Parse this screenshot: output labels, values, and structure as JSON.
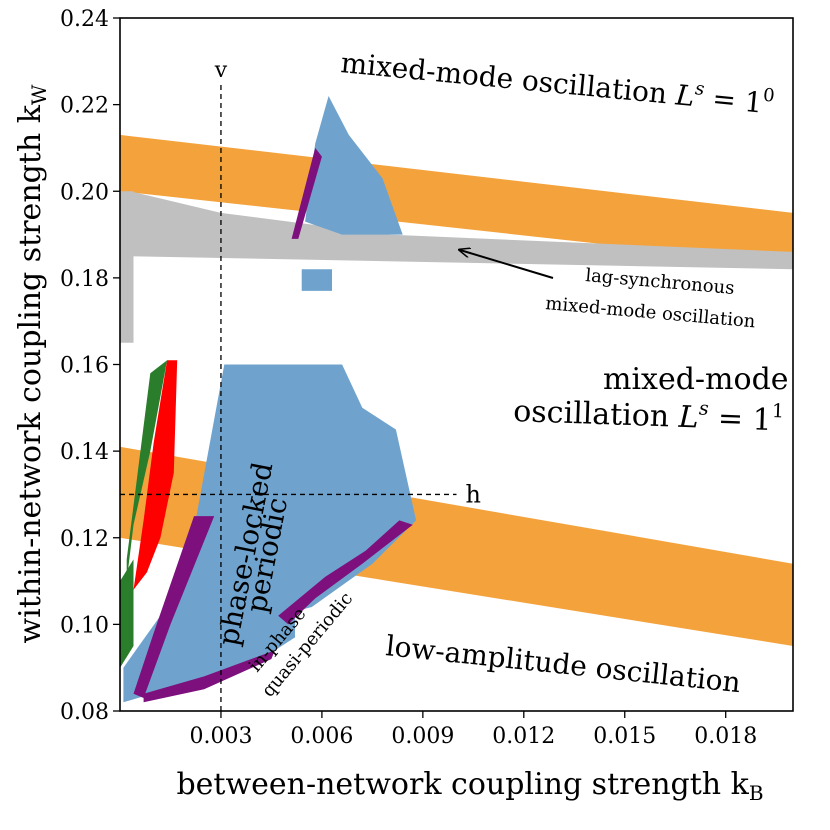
{
  "chart_data": {
    "type": "heatmap",
    "title": "",
    "xlabel": "between-network coupling strength k",
    "xlabel_sub": "B",
    "ylabel": "within-network coupling strength k",
    "ylabel_sub": "W",
    "xlim": [
      0.0,
      0.02
    ],
    "ylim": [
      0.08,
      0.24
    ],
    "xticks": [
      0.003,
      0.006,
      0.009,
      0.012,
      0.015,
      0.018
    ],
    "xtick_labels": [
      "0.003",
      "0.006",
      "0.009",
      "0.012",
      "0.015",
      "0.018"
    ],
    "yticks": [
      0.08,
      0.1,
      0.12,
      0.14,
      0.16,
      0.18,
      0.2,
      0.22,
      0.24
    ],
    "ytick_labels": [
      "0.08",
      "0.10",
      "0.12",
      "0.14",
      "0.16",
      "0.18",
      "0.20",
      "0.22",
      "0.24"
    ],
    "grid": false,
    "colors": {
      "orange": "#f4a23c",
      "blue": "#6fa3cd",
      "gray": "#c0c0c0",
      "red": "#ff0000",
      "green": "#2a7d2a",
      "purple": "#7d107d"
    },
    "regions": [
      {
        "color": "orange",
        "points": [
          [
            0.0,
            0.213
          ],
          [
            0.02,
            0.195
          ],
          [
            0.02,
            0.183
          ],
          [
            0.0,
            0.2
          ]
        ]
      },
      {
        "color": "orange",
        "points": [
          [
            0.0,
            0.141
          ],
          [
            0.02,
            0.114
          ],
          [
            0.02,
            0.095
          ],
          [
            0.0,
            0.12
          ]
        ]
      },
      {
        "color": "gray",
        "points": [
          [
            0.0003,
            0.2
          ],
          [
            0.003,
            0.195
          ],
          [
            0.008,
            0.19
          ],
          [
            0.02,
            0.186
          ],
          [
            0.02,
            0.182
          ],
          [
            0.0003,
            0.185
          ]
        ]
      },
      {
        "color": "gray",
        "points": [
          [
            0.0,
            0.2
          ],
          [
            0.0004,
            0.2
          ],
          [
            0.0004,
            0.165
          ],
          [
            0.0,
            0.165
          ]
        ]
      },
      {
        "color": "blue",
        "points": [
          [
            0.0031,
            0.16
          ],
          [
            0.0066,
            0.16
          ],
          [
            0.0072,
            0.15
          ],
          [
            0.0082,
            0.145
          ],
          [
            0.0088,
            0.124
          ],
          [
            0.0075,
            0.114
          ],
          [
            0.0057,
            0.104
          ],
          [
            0.0052,
            0.103
          ],
          [
            0.0052,
            0.097
          ],
          [
            0.0046,
            0.094
          ],
          [
            0.0034,
            0.09
          ],
          [
            0.0014,
            0.085
          ],
          [
            0.0001,
            0.082
          ],
          [
            0.0001,
            0.09
          ],
          [
            0.0012,
            0.102
          ],
          [
            0.0022,
            0.122
          ]
        ]
      },
      {
        "color": "blue",
        "points": [
          [
            0.0058,
            0.211
          ],
          [
            0.0062,
            0.222
          ],
          [
            0.0068,
            0.213
          ],
          [
            0.0078,
            0.203
          ],
          [
            0.0084,
            0.19
          ],
          [
            0.0066,
            0.19
          ],
          [
            0.0055,
            0.193
          ]
        ]
      },
      {
        "color": "blue",
        "points": [
          [
            0.0054,
            0.182
          ],
          [
            0.0063,
            0.182
          ],
          [
            0.0063,
            0.177
          ],
          [
            0.0054,
            0.177
          ]
        ]
      },
      {
        "color": "red",
        "points": [
          [
            0.0014,
            0.161
          ],
          [
            0.0017,
            0.161
          ],
          [
            0.0016,
            0.135
          ],
          [
            0.0012,
            0.12
          ],
          [
            0.0008,
            0.112
          ],
          [
            0.0004,
            0.108
          ],
          [
            0.0007,
            0.124
          ],
          [
            0.001,
            0.142
          ]
        ]
      },
      {
        "color": "green",
        "points": [
          [
            0.0009,
            0.158
          ],
          [
            0.0014,
            0.161
          ],
          [
            0.0009,
            0.14
          ],
          [
            0.0004,
            0.123
          ],
          [
            0.0002,
            0.11
          ],
          [
            0.0002,
            0.115
          ]
        ]
      },
      {
        "color": "green",
        "points": [
          [
            0.0,
            0.11
          ],
          [
            0.0004,
            0.115
          ],
          [
            0.0004,
            0.095
          ],
          [
            0.0,
            0.09
          ]
        ]
      },
      {
        "color": "purple",
        "points": [
          [
            0.0022,
            0.125
          ],
          [
            0.0028,
            0.125
          ],
          [
            0.0015,
            0.1
          ],
          [
            0.0007,
            0.083
          ],
          [
            0.0004,
            0.084
          ],
          [
            0.001,
            0.098
          ]
        ]
      },
      {
        "color": "purple",
        "points": [
          [
            0.0007,
            0.082
          ],
          [
            0.0025,
            0.085
          ],
          [
            0.0045,
            0.092
          ],
          [
            0.0046,
            0.094
          ],
          [
            0.0025,
            0.088
          ],
          [
            0.0007,
            0.084
          ]
        ]
      },
      {
        "color": "purple",
        "points": [
          [
            0.0047,
            0.102
          ],
          [
            0.0061,
            0.111
          ],
          [
            0.0073,
            0.117
          ],
          [
            0.0083,
            0.124
          ],
          [
            0.0087,
            0.123
          ],
          [
            0.0072,
            0.114
          ],
          [
            0.0058,
            0.106
          ],
          [
            0.005,
            0.1
          ]
        ]
      },
      {
        "color": "purple",
        "points": [
          [
            0.0051,
            0.189
          ],
          [
            0.0058,
            0.21
          ],
          [
            0.006,
            0.208
          ],
          [
            0.0053,
            0.189
          ]
        ]
      }
    ],
    "reference_lines": [
      {
        "orientation": "vertical",
        "x": 0.003,
        "y_from": 0.08,
        "y_to": 0.225,
        "label": "v"
      },
      {
        "orientation": "horizontal",
        "y": 0.13,
        "x_from": 0.0,
        "x_to": 0.01,
        "label": "h"
      }
    ],
    "annotations": [
      {
        "text": "mixed-mode oscillation",
        "math": "L",
        "sup": "s",
        "eq": "= 1",
        "eq_sup": "0"
      },
      {
        "text": "lag-synchronous"
      },
      {
        "text": "mixed-mode oscillation"
      },
      {
        "text": "mixed-mode"
      },
      {
        "text": "oscillation",
        "math": "L",
        "sup": "s",
        "eq": "= 1",
        "eq_sup": "1"
      },
      {
        "text": "phase-locked"
      },
      {
        "text": "periodic"
      },
      {
        "text": "in-phase"
      },
      {
        "text": "quasi-periodic"
      },
      {
        "text": "low-amplitude oscillation"
      }
    ]
  }
}
